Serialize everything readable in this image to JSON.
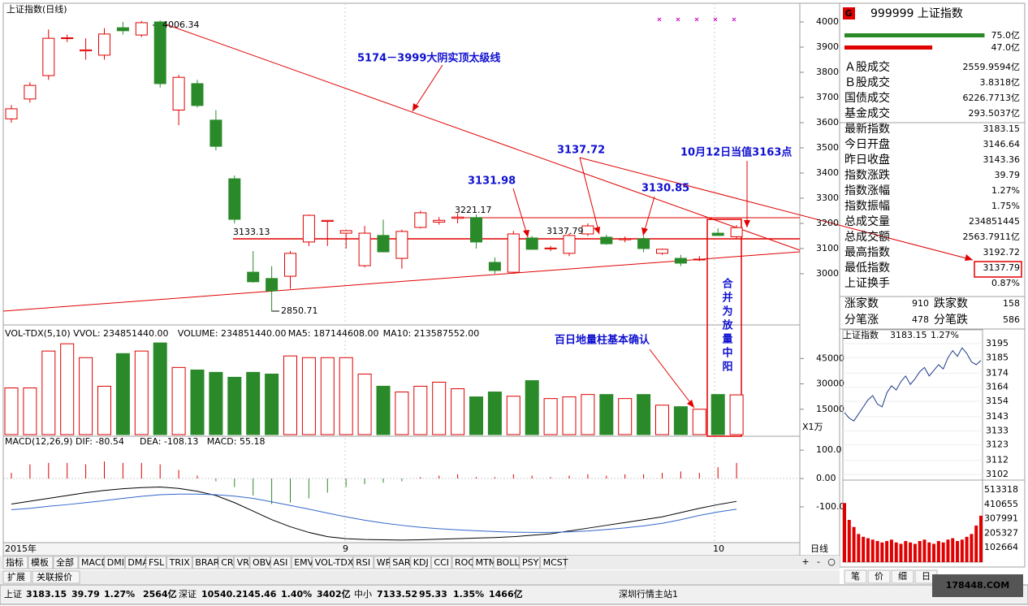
{
  "window": {
    "title": "上证指数(日线)"
  },
  "kline": {
    "ylim": [
      2845,
      4071
    ],
    "yticks": [
      3000,
      3100,
      3200,
      3300,
      3400,
      3500,
      3600,
      3700,
      3800,
      3900,
      4000
    ],
    "candles": [
      [
        3615,
        3670,
        3600,
        3655
      ],
      [
        3694,
        3760,
        3680,
        3748
      ],
      [
        3787,
        3970,
        3770,
        3935
      ],
      [
        3935,
        3950,
        3920,
        3937
      ],
      [
        3885,
        3935,
        3850,
        3889
      ],
      [
        3868,
        3975,
        3850,
        3952
      ],
      [
        3977,
        4000,
        3950,
        3965
      ],
      [
        3948,
        4004,
        3940,
        3997
      ],
      [
        4000,
        4006,
        3740,
        3755
      ],
      [
        3650,
        3790,
        3590,
        3780
      ],
      [
        3755,
        3770,
        3660,
        3668
      ],
      [
        3610,
        3650,
        3490,
        3506
      ],
      [
        3377,
        3390,
        3200,
        3216
      ],
      [
        3006,
        3090,
        2965,
        2968
      ],
      [
        2981,
        3030,
        2850,
        2932
      ],
      [
        2990,
        3090,
        2940,
        3081
      ],
      [
        3126,
        3235,
        3110,
        3232
      ],
      [
        3208,
        3212,
        3110,
        3212
      ],
      [
        3161,
        3175,
        3100,
        3171
      ],
      [
        3032,
        3190,
        3025,
        3161
      ],
      [
        3152,
        3215,
        3085,
        3087
      ],
      [
        3061,
        3175,
        3020,
        3168
      ],
      [
        3184,
        3250,
        3180,
        3242
      ],
      [
        3205,
        3225,
        3195,
        3212
      ],
      [
        3220,
        3240,
        3200,
        3225
      ],
      [
        3223,
        3235,
        3100,
        3126
      ],
      [
        3045,
        3065,
        3000,
        3013
      ],
      [
        3006,
        3170,
        3000,
        3158
      ],
      [
        3142,
        3150,
        3095,
        3097
      ],
      [
        3100,
        3110,
        3090,
        3102
      ],
      [
        3081,
        3160,
        3070,
        3152
      ],
      [
        3158,
        3200,
        3150,
        3190
      ],
      [
        3145,
        3155,
        3115,
        3119
      ],
      [
        3135,
        3148,
        3125,
        3139
      ],
      [
        3139,
        3150,
        3085,
        3100
      ],
      [
        3081,
        3100,
        3075,
        3097
      ],
      [
        3061,
        3075,
        3030,
        3042
      ],
      [
        3055,
        3070,
        3050,
        3058
      ],
      [
        3161,
        3180,
        3150,
        3152
      ],
      [
        3147,
        3193,
        3138,
        3183
      ]
    ],
    "high_label": "4006.34",
    "low_label": "2850.71",
    "price_labels": [
      "3133.13",
      "3221.17",
      "3137.79"
    ],
    "annotations": [
      "5174－3999大阴实顶太级线",
      "3137.72",
      "3131.98",
      "3130.85",
      "10月12日当值3163点",
      "百日地量柱基本确认",
      "合并为放量中阳"
    ]
  },
  "volume": {
    "header": [
      "VOL-TDX(5,10) VVOL: 234851440.00",
      "VOLUME: 234851440.00",
      "MA5: 187144608.00",
      "MA10: 213587552.00"
    ],
    "ylim": [
      0,
      63400
    ],
    "yticks": [
      15000,
      30000,
      45000
    ],
    "unit": "X1万",
    "values": [
      27600,
      27600,
      49400,
      53700,
      45500,
      28600,
      47900,
      49400,
      54200,
      39700,
      38200,
      36800,
      33900,
      36800,
      35800,
      46500,
      45500,
      45500,
      45500,
      35800,
      28600,
      25200,
      28600,
      31000,
      27100,
      22300,
      25200,
      22700,
      31900,
      21300,
      22300,
      23700,
      23700,
      21300,
      23700,
      17400,
      16500,
      15000,
      23700,
      23485
    ]
  },
  "macd": {
    "header": [
      "MACD(12,26,9) DIF: -80.54",
      "DEA: -108.13",
      "MACD: 55.18"
    ],
    "ylim": [
      -226,
      149
    ],
    "yticks": [
      {
        "value": 100,
        "label": "100.0"
      },
      {
        "value": 0,
        "label": "0.00"
      },
      {
        "value": -100,
        "label": "-100.0"
      }
    ],
    "histogram": [
      20,
      50,
      55,
      55,
      50,
      60,
      55,
      55,
      50,
      30,
      10,
      -10,
      -30,
      -60,
      -90,
      -85,
      -70,
      -50,
      -30,
      -20,
      -15,
      -10,
      5,
      10,
      15,
      5,
      5,
      15,
      10,
      5,
      10,
      15,
      10,
      15,
      15,
      20,
      25,
      20,
      40,
      55
    ],
    "dif": [
      -90,
      -80,
      -70,
      -60,
      -50,
      -42,
      -36,
      -32,
      -30,
      -35,
      -45,
      -60,
      -85,
      -115,
      -145,
      -170,
      -190,
      -205,
      -212,
      -215,
      -216,
      -217,
      -216,
      -214,
      -212,
      -210,
      -208,
      -205,
      -200,
      -195,
      -185,
      -175,
      -165,
      -155,
      -145,
      -135,
      -120,
      -105,
      -92,
      -80.54
    ],
    "dea": [
      -110,
      -105,
      -98,
      -92,
      -85,
      -78,
      -70,
      -63,
      -57,
      -55,
      -55,
      -57,
      -62,
      -70,
      -82,
      -95,
      -108,
      -122,
      -135,
      -147,
      -157,
      -165,
      -172,
      -177,
      -181,
      -184,
      -187,
      -189,
      -190,
      -190,
      -188,
      -185,
      -180,
      -174,
      -167,
      -158,
      -145,
      -130,
      -118,
      -108.13
    ]
  },
  "dates": [
    "2015年",
    "9",
    "10"
  ],
  "period": "日线",
  "zoom": [
    "+",
    "-",
    "○"
  ],
  "tabs": [
    "指标",
    "模板",
    "全部",
    "MACD",
    "DMI",
    "DMA",
    "FSL",
    "TRIX",
    "BRAR",
    "CR",
    "VR",
    "OBV",
    "ASI",
    "EMV",
    "VOL-TDX",
    "RSI",
    "WR",
    "SAR",
    "KDJ",
    "CCI",
    "ROC",
    "MTM",
    "BOLL",
    "PSY",
    "MCST"
  ],
  "bottom_tabs": [
    "扩展",
    "关联报价"
  ],
  "quote": {
    "icon": "G",
    "title": "999999 上证指数",
    "flow": [
      {
        "value": 75.0,
        "label": "75.0亿"
      },
      {
        "value": 47.0,
        "label": "47.0亿"
      }
    ],
    "rows": [
      {
        "label": "Ａ股成交",
        "value": "2559.9594亿",
        "color": "#000000"
      },
      {
        "label": "Ｂ股成交",
        "value": "3.8318亿",
        "color": "#000000"
      },
      {
        "label": "国债成交",
        "value": "6226.7713亿",
        "color": "#000000"
      },
      {
        "label": "基金成交",
        "value": "293.5037亿",
        "color": "#000000"
      },
      {
        "label": "最新指数",
        "value": "3183.15",
        "color": "#e00000"
      },
      {
        "label": "今日开盘",
        "value": "3146.64",
        "color": "#e00000"
      },
      {
        "label": "昨日收盘",
        "value": "3143.36",
        "color": "#000000"
      },
      {
        "label": "指数涨跌",
        "value": "39.79",
        "color": "#e00000"
      },
      {
        "label": "指数涨幅",
        "value": "1.27%",
        "color": "#e00000"
      },
      {
        "label": "指数振幅",
        "value": "1.75%",
        "color": "#000000"
      },
      {
        "label": "总成交量",
        "value": "234851445",
        "color": "#000000"
      },
      {
        "label": "总成交额",
        "value": "2563.7911亿",
        "color": "#000000"
      },
      {
        "label": "最高指数",
        "value": "3192.72",
        "color": "#e00000"
      },
      {
        "label": "最低指数",
        "value": "3137.79",
        "color": "#008000"
      },
      {
        "label": "上证换手",
        "value": "0.87%",
        "color": "#000000"
      }
    ],
    "breadth": [
      [
        "涨家数",
        "910",
        "跌家数",
        "158"
      ],
      [
        "分笔涨",
        "478",
        "分笔跌",
        "586"
      ]
    ]
  },
  "intraday": {
    "header": [
      "上证指数",
      "3183.15",
      "1.27%"
    ],
    "ylim": [
      3102,
      3195
    ],
    "yticks": [
      3195,
      3185,
      3174,
      3164,
      3154,
      3143,
      3133,
      3123,
      3112,
      3102
    ],
    "prices": [
      3146,
      3142,
      3140,
      3145,
      3150,
      3155,
      3158,
      3152,
      3150,
      3160,
      3165,
      3162,
      3168,
      3172,
      3166,
      3170,
      3175,
      3178,
      3172,
      3176,
      3180,
      3177,
      3185,
      3190,
      3186,
      3192,
      3188,
      3182,
      3180,
      3183
    ],
    "vol_ylim": [
      0,
      560000
    ],
    "vol_ticks": [
      513318,
      410655,
      307991,
      205327,
      102664
    ],
    "volumes": [
      420000,
      300000,
      250000,
      200000,
      180000,
      170000,
      160000,
      150000,
      140000,
      150000,
      160000,
      140000,
      130000,
      150000,
      140000,
      130000,
      150000,
      160000,
      140000,
      130000,
      150000,
      140000,
      160000,
      170000,
      150000,
      160000,
      180000,
      200000,
      260000,
      330000
    ],
    "tabs": [
      "笔",
      "价",
      "细",
      "日"
    ]
  },
  "status": [
    "上证",
    "3183.15",
    "39.79",
    "1.27%",
    "2564亿",
    "深证",
    "10540.2",
    "145.46",
    "1.40%",
    "3402亿",
    "中小",
    "7133.52",
    "95.33",
    "1.35%",
    "1466亿",
    "深圳行情主站1"
  ],
  "watermark": "178448.COM"
}
